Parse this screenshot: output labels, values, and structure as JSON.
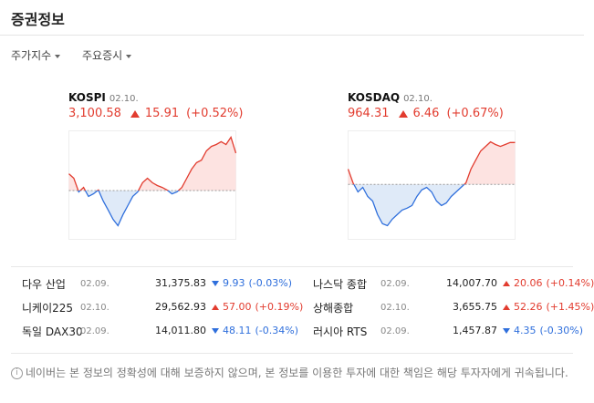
{
  "header": {
    "title": "증권정보"
  },
  "tabs": [
    "주가지수",
    "주요증시"
  ],
  "indices": [
    {
      "name": "KOSPI",
      "date": "02.10.",
      "value": "3,100.58",
      "change": "15.91",
      "percent": "(+0.52%)",
      "direction": "up",
      "chart": {
        "baseline": 3084.67,
        "ylim": [
          3064,
          3110
        ],
        "values": [
          3091.8,
          3089.9,
          3084.1,
          3086.0,
          3082.2,
          3083.3,
          3084.9,
          3080.2,
          3076.4,
          3072.5,
          3069.8,
          3074.4,
          3078.3,
          3082.2,
          3084.1,
          3088.0,
          3089.9,
          3088.0,
          3086.8,
          3086.0,
          3084.9,
          3083.3,
          3084.1,
          3086.0,
          3089.9,
          3093.8,
          3096.5,
          3097.6,
          3101.5,
          3103.4,
          3104.2,
          3105.4,
          3104.2,
          3107.3,
          3100.58
        ]
      }
    },
    {
      "name": "KOSDAQ",
      "date": "02.10.",
      "value": "964.31",
      "change": "6.46",
      "percent": "(+0.67%)",
      "direction": "up",
      "chart": {
        "baseline": 957.85,
        "ylim": [
          949.4,
          966.1
        ],
        "values": [
          960.2,
          958.1,
          956.7,
          957.4,
          956.0,
          955.3,
          953.2,
          951.8,
          951.5,
          952.5,
          953.2,
          953.9,
          954.2,
          954.6,
          956.0,
          957.0,
          957.4,
          956.7,
          955.3,
          954.6,
          955.0,
          956.0,
          956.7,
          957.4,
          958.1,
          960.2,
          961.6,
          963.0,
          963.7,
          964.4,
          964.0,
          963.7,
          964.0,
          964.3,
          964.3
        ]
      }
    }
  ],
  "markets": [
    {
      "name": "다우 산업",
      "date": "02.09.",
      "value": "31,375.83",
      "change": "9.93",
      "percent": "(-0.03%)",
      "direction": "down"
    },
    {
      "name": "나스닥 종합",
      "date": "02.09.",
      "value": "14,007.70",
      "change": "20.06",
      "percent": "(+0.14%)",
      "direction": "up"
    },
    {
      "name": "니케이225",
      "date": "02.10.",
      "value": "29,562.93",
      "change": "57.00",
      "percent": "(+0.19%)",
      "direction": "up"
    },
    {
      "name": "상해종합",
      "date": "02.10.",
      "value": "3,655.75",
      "change": "52.26",
      "percent": "(+1.45%)",
      "direction": "up"
    },
    {
      "name": "독일 DAX30",
      "date": "02.09.",
      "value": "14,011.80",
      "change": "48.11",
      "percent": "(-0.34%)",
      "direction": "down"
    },
    {
      "name": "러시아 RTS",
      "date": "02.09.",
      "value": "1,457.87",
      "change": "4.35",
      "percent": "(-0.30%)",
      "direction": "down"
    }
  ],
  "notice": "네이버는 본 정보의 정확성에 대해 보증하지 않으며, 본 정보를 이용한 투자에 대한 책임은 해당 투자자에게 귀속됩니다."
}
